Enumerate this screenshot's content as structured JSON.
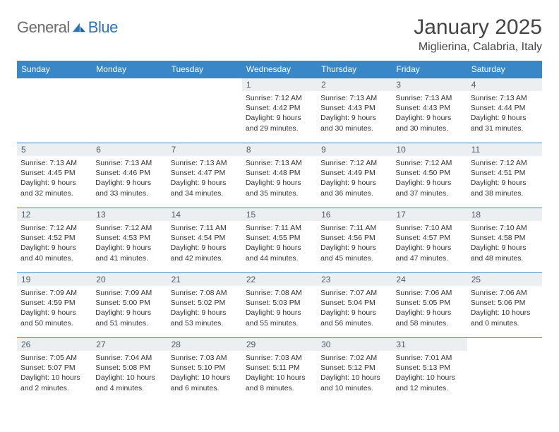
{
  "brand": {
    "word1": "General",
    "word2": "Blue"
  },
  "title": "January 2025",
  "subtitle": "Miglierina, Calabria, Italy",
  "days_of_week": [
    "Sunday",
    "Monday",
    "Tuesday",
    "Wednesday",
    "Thursday",
    "Friday",
    "Saturday"
  ],
  "colors": {
    "header_bg": "#3a87c8",
    "header_text": "#ffffff",
    "daynum_bg": "#eceff1",
    "daynum_text": "#4b5a66",
    "body_text": "#333333",
    "rule": "#3a87c8",
    "logo_gray": "#6b6b6b",
    "logo_blue": "#2a75bb"
  },
  "grid": [
    [
      {
        "n": "",
        "sr": "",
        "ss": "",
        "dl": ""
      },
      {
        "n": "",
        "sr": "",
        "ss": "",
        "dl": ""
      },
      {
        "n": "",
        "sr": "",
        "ss": "",
        "dl": ""
      },
      {
        "n": "1",
        "sr": "Sunrise: 7:12 AM",
        "ss": "Sunset: 4:42 PM",
        "dl": "Daylight: 9 hours and 29 minutes."
      },
      {
        "n": "2",
        "sr": "Sunrise: 7:13 AM",
        "ss": "Sunset: 4:43 PM",
        "dl": "Daylight: 9 hours and 30 minutes."
      },
      {
        "n": "3",
        "sr": "Sunrise: 7:13 AM",
        "ss": "Sunset: 4:43 PM",
        "dl": "Daylight: 9 hours and 30 minutes."
      },
      {
        "n": "4",
        "sr": "Sunrise: 7:13 AM",
        "ss": "Sunset: 4:44 PM",
        "dl": "Daylight: 9 hours and 31 minutes."
      }
    ],
    [
      {
        "n": "5",
        "sr": "Sunrise: 7:13 AM",
        "ss": "Sunset: 4:45 PM",
        "dl": "Daylight: 9 hours and 32 minutes."
      },
      {
        "n": "6",
        "sr": "Sunrise: 7:13 AM",
        "ss": "Sunset: 4:46 PM",
        "dl": "Daylight: 9 hours and 33 minutes."
      },
      {
        "n": "7",
        "sr": "Sunrise: 7:13 AM",
        "ss": "Sunset: 4:47 PM",
        "dl": "Daylight: 9 hours and 34 minutes."
      },
      {
        "n": "8",
        "sr": "Sunrise: 7:13 AM",
        "ss": "Sunset: 4:48 PM",
        "dl": "Daylight: 9 hours and 35 minutes."
      },
      {
        "n": "9",
        "sr": "Sunrise: 7:12 AM",
        "ss": "Sunset: 4:49 PM",
        "dl": "Daylight: 9 hours and 36 minutes."
      },
      {
        "n": "10",
        "sr": "Sunrise: 7:12 AM",
        "ss": "Sunset: 4:50 PM",
        "dl": "Daylight: 9 hours and 37 minutes."
      },
      {
        "n": "11",
        "sr": "Sunrise: 7:12 AM",
        "ss": "Sunset: 4:51 PM",
        "dl": "Daylight: 9 hours and 38 minutes."
      }
    ],
    [
      {
        "n": "12",
        "sr": "Sunrise: 7:12 AM",
        "ss": "Sunset: 4:52 PM",
        "dl": "Daylight: 9 hours and 40 minutes."
      },
      {
        "n": "13",
        "sr": "Sunrise: 7:12 AM",
        "ss": "Sunset: 4:53 PM",
        "dl": "Daylight: 9 hours and 41 minutes."
      },
      {
        "n": "14",
        "sr": "Sunrise: 7:11 AM",
        "ss": "Sunset: 4:54 PM",
        "dl": "Daylight: 9 hours and 42 minutes."
      },
      {
        "n": "15",
        "sr": "Sunrise: 7:11 AM",
        "ss": "Sunset: 4:55 PM",
        "dl": "Daylight: 9 hours and 44 minutes."
      },
      {
        "n": "16",
        "sr": "Sunrise: 7:11 AM",
        "ss": "Sunset: 4:56 PM",
        "dl": "Daylight: 9 hours and 45 minutes."
      },
      {
        "n": "17",
        "sr": "Sunrise: 7:10 AM",
        "ss": "Sunset: 4:57 PM",
        "dl": "Daylight: 9 hours and 47 minutes."
      },
      {
        "n": "18",
        "sr": "Sunrise: 7:10 AM",
        "ss": "Sunset: 4:58 PM",
        "dl": "Daylight: 9 hours and 48 minutes."
      }
    ],
    [
      {
        "n": "19",
        "sr": "Sunrise: 7:09 AM",
        "ss": "Sunset: 4:59 PM",
        "dl": "Daylight: 9 hours and 50 minutes."
      },
      {
        "n": "20",
        "sr": "Sunrise: 7:09 AM",
        "ss": "Sunset: 5:00 PM",
        "dl": "Daylight: 9 hours and 51 minutes."
      },
      {
        "n": "21",
        "sr": "Sunrise: 7:08 AM",
        "ss": "Sunset: 5:02 PM",
        "dl": "Daylight: 9 hours and 53 minutes."
      },
      {
        "n": "22",
        "sr": "Sunrise: 7:08 AM",
        "ss": "Sunset: 5:03 PM",
        "dl": "Daylight: 9 hours and 55 minutes."
      },
      {
        "n": "23",
        "sr": "Sunrise: 7:07 AM",
        "ss": "Sunset: 5:04 PM",
        "dl": "Daylight: 9 hours and 56 minutes."
      },
      {
        "n": "24",
        "sr": "Sunrise: 7:06 AM",
        "ss": "Sunset: 5:05 PM",
        "dl": "Daylight: 9 hours and 58 minutes."
      },
      {
        "n": "25",
        "sr": "Sunrise: 7:06 AM",
        "ss": "Sunset: 5:06 PM",
        "dl": "Daylight: 10 hours and 0 minutes."
      }
    ],
    [
      {
        "n": "26",
        "sr": "Sunrise: 7:05 AM",
        "ss": "Sunset: 5:07 PM",
        "dl": "Daylight: 10 hours and 2 minutes."
      },
      {
        "n": "27",
        "sr": "Sunrise: 7:04 AM",
        "ss": "Sunset: 5:08 PM",
        "dl": "Daylight: 10 hours and 4 minutes."
      },
      {
        "n": "28",
        "sr": "Sunrise: 7:03 AM",
        "ss": "Sunset: 5:10 PM",
        "dl": "Daylight: 10 hours and 6 minutes."
      },
      {
        "n": "29",
        "sr": "Sunrise: 7:03 AM",
        "ss": "Sunset: 5:11 PM",
        "dl": "Daylight: 10 hours and 8 minutes."
      },
      {
        "n": "30",
        "sr": "Sunrise: 7:02 AM",
        "ss": "Sunset: 5:12 PM",
        "dl": "Daylight: 10 hours and 10 minutes."
      },
      {
        "n": "31",
        "sr": "Sunrise: 7:01 AM",
        "ss": "Sunset: 5:13 PM",
        "dl": "Daylight: 10 hours and 12 minutes."
      },
      {
        "n": "",
        "sr": "",
        "ss": "",
        "dl": ""
      }
    ]
  ]
}
